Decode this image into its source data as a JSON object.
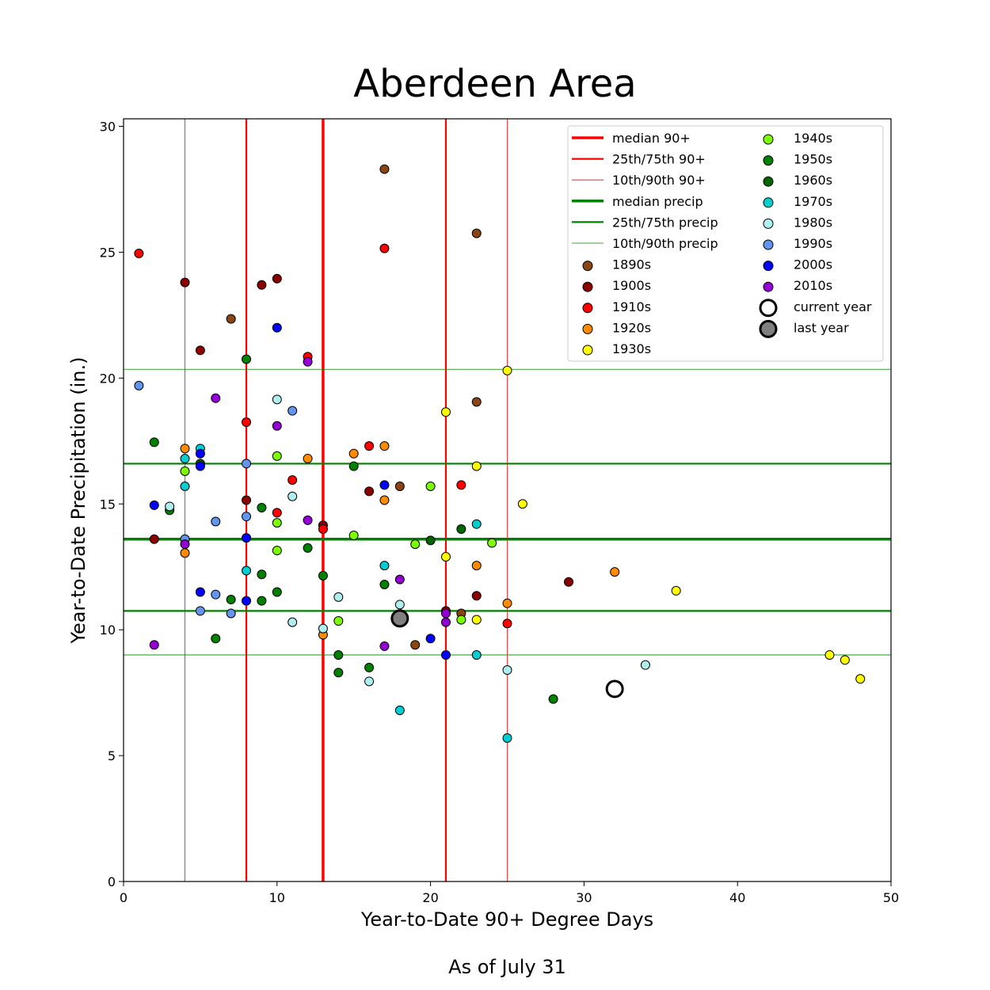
{
  "chart_data": {
    "type": "scatter",
    "title": "Aberdeen Area",
    "xlabel": "Year-to-Date 90+ Degree Days",
    "ylabel": "Year-to-Date Precipitation (in.)",
    "footer": "As of July 31",
    "xlim": [
      0,
      50
    ],
    "ylim": [
      0,
      30.3
    ],
    "xticks": [
      0,
      10,
      20,
      30,
      40,
      50
    ],
    "yticks": [
      0,
      5,
      10,
      15,
      20,
      25,
      30
    ],
    "grid": false,
    "legend_position": "top-right",
    "reference_lines": {
      "vertical": [
        {
          "name": "median 90+",
          "value": 13,
          "color": "#ff0000",
          "weight": "thick"
        },
        {
          "name": "25th/75th 90+",
          "value": 8,
          "color": "#ff0000",
          "weight": "medium"
        },
        {
          "name": "25th/75th 90+",
          "value": 21,
          "color": "#ff0000",
          "weight": "medium"
        },
        {
          "name": "10th/90th 90+",
          "value": 4,
          "color": "#ff0000",
          "weight": "thin"
        },
        {
          "name": "10th/90th 90+",
          "value": 25,
          "color": "#ff0000",
          "weight": "thin"
        }
      ],
      "horizontal": [
        {
          "name": "median precip",
          "value": 13.6,
          "color": "#008000",
          "weight": "thick"
        },
        {
          "name": "25th/75th precip",
          "value": 10.75,
          "color": "#008000",
          "weight": "medium"
        },
        {
          "name": "25th/75th precip",
          "value": 16.6,
          "color": "#008000",
          "weight": "medium"
        },
        {
          "name": "10th/90th precip",
          "value": 9.0,
          "color": "#008000",
          "weight": "thin"
        },
        {
          "name": "10th/90th precip",
          "value": 20.35,
          "color": "#008000",
          "weight": "thin"
        }
      ]
    },
    "legend": {
      "lines": [
        {
          "label": "median 90+",
          "color": "#ff0000",
          "weight": "thick"
        },
        {
          "label": "25th/75th 90+",
          "color": "#ff0000",
          "weight": "medium"
        },
        {
          "label": "10th/90th 90+",
          "color": "#ff0000",
          "weight": "thin"
        },
        {
          "label": "median precip",
          "color": "#008000",
          "weight": "thick"
        },
        {
          "label": "25th/75th precip",
          "color": "#008000",
          "weight": "medium"
        },
        {
          "label": "10th/90th precip",
          "color": "#008000",
          "weight": "thin"
        }
      ],
      "markers": [
        {
          "label": "1890s",
          "color": "#8b4513"
        },
        {
          "label": "1900s",
          "color": "#8b0000"
        },
        {
          "label": "1910s",
          "color": "#ff0000"
        },
        {
          "label": "1920s",
          "color": "#ff8c00"
        },
        {
          "label": "1930s",
          "color": "#ffff00"
        },
        {
          "label": "1940s",
          "color": "#7cfc00"
        },
        {
          "label": "1950s",
          "color": "#008000"
        },
        {
          "label": "1960s",
          "color": "#006400"
        },
        {
          "label": "1970s",
          "color": "#00ced1"
        },
        {
          "label": "1980s",
          "color": "#afeeee"
        },
        {
          "label": "1990s",
          "color": "#6495ed"
        },
        {
          "label": "2000s",
          "color": "#0000ff"
        },
        {
          "label": "2010s",
          "color": "#9400d3"
        },
        {
          "label": "current year",
          "color": "#ffffff",
          "special": "current"
        },
        {
          "label": "last year",
          "color": "#808080",
          "special": "last"
        }
      ]
    },
    "series": [
      {
        "name": "1890s",
        "color": "#8b4513",
        "points": [
          [
            17,
            28.3
          ],
          [
            23,
            25.75
          ],
          [
            7,
            22.35
          ],
          [
            23,
            19.05
          ],
          [
            18,
            15.7
          ],
          [
            22,
            10.65
          ],
          [
            19,
            9.4
          ]
        ]
      },
      {
        "name": "1900s",
        "color": "#8b0000",
        "points": [
          [
            4,
            23.8
          ],
          [
            9,
            23.7
          ],
          [
            10,
            23.95
          ],
          [
            5,
            21.1
          ],
          [
            8,
            15.15
          ],
          [
            16,
            15.5
          ],
          [
            2,
            13.6
          ],
          [
            13,
            14.15
          ],
          [
            23,
            11.35
          ],
          [
            29,
            11.9
          ],
          [
            21,
            10.75
          ]
        ]
      },
      {
        "name": "1910s",
        "color": "#ff0000",
        "points": [
          [
            1,
            24.95
          ],
          [
            17,
            25.15
          ],
          [
            12,
            20.85
          ],
          [
            8,
            18.25
          ],
          [
            16,
            17.3
          ],
          [
            11,
            15.95
          ],
          [
            22,
            15.75
          ],
          [
            10,
            14.65
          ],
          [
            13,
            14.0
          ],
          [
            25,
            10.25
          ]
        ]
      },
      {
        "name": "1920s",
        "color": "#ff8c00",
        "points": [
          [
            4,
            17.2
          ],
          [
            12,
            16.8
          ],
          [
            15,
            17.0
          ],
          [
            17,
            17.3
          ],
          [
            17,
            15.15
          ],
          [
            4,
            13.05
          ],
          [
            23,
            12.55
          ],
          [
            32,
            12.3
          ],
          [
            25,
            11.05
          ],
          [
            13,
            9.8
          ]
        ]
      },
      {
        "name": "1930s",
        "color": "#ffff00",
        "points": [
          [
            25,
            20.3
          ],
          [
            21,
            18.65
          ],
          [
            23,
            16.5
          ],
          [
            26,
            15.0
          ],
          [
            21,
            12.9
          ],
          [
            36,
            11.55
          ],
          [
            23,
            10.4
          ],
          [
            46,
            9.0
          ],
          [
            47,
            8.8
          ],
          [
            48,
            8.05
          ]
        ]
      },
      {
        "name": "1940s",
        "color": "#7cfc00",
        "points": [
          [
            4,
            16.3
          ],
          [
            10,
            16.9
          ],
          [
            10,
            14.25
          ],
          [
            15,
            13.75
          ],
          [
            10,
            13.15
          ],
          [
            20,
            15.7
          ],
          [
            19,
            13.4
          ],
          [
            24,
            13.45
          ],
          [
            14,
            10.35
          ],
          [
            22,
            10.4
          ]
        ]
      },
      {
        "name": "1950s",
        "color": "#008000",
        "points": [
          [
            8,
            20.75
          ],
          [
            2,
            17.45
          ],
          [
            3,
            14.75
          ],
          [
            9,
            14.85
          ],
          [
            15,
            16.5
          ],
          [
            12,
            13.25
          ],
          [
            9,
            12.2
          ],
          [
            13,
            12.15
          ],
          [
            17,
            11.8
          ],
          [
            10,
            11.5
          ],
          [
            7,
            11.2
          ],
          [
            9,
            11.15
          ],
          [
            6,
            9.65
          ],
          [
            14,
            9.0
          ],
          [
            14,
            8.3
          ],
          [
            16,
            8.5
          ],
          [
            28,
            7.25
          ]
        ]
      },
      {
        "name": "1960s",
        "color": "#006400",
        "points": [
          [
            5,
            16.6
          ],
          [
            20,
            13.55
          ],
          [
            22,
            14.0
          ]
        ]
      },
      {
        "name": "1970s",
        "color": "#00ced1",
        "points": [
          [
            5,
            17.2
          ],
          [
            4,
            16.8
          ],
          [
            4,
            15.7
          ],
          [
            8,
            12.35
          ],
          [
            17,
            12.55
          ],
          [
            23,
            14.2
          ],
          [
            23,
            9.0
          ],
          [
            18,
            6.8
          ],
          [
            25,
            5.7
          ]
        ]
      },
      {
        "name": "1980s",
        "color": "#afeeee",
        "points": [
          [
            10,
            19.15
          ],
          [
            3,
            14.9
          ],
          [
            11,
            15.3
          ],
          [
            14,
            11.3
          ],
          [
            18,
            11.0
          ],
          [
            11,
            10.3
          ],
          [
            13,
            10.05
          ],
          [
            16,
            7.95
          ],
          [
            25,
            8.4
          ],
          [
            34,
            8.6
          ]
        ]
      },
      {
        "name": "1990s",
        "color": "#6495ed",
        "points": [
          [
            1,
            19.7
          ],
          [
            11,
            18.7
          ],
          [
            8,
            16.6
          ],
          [
            6,
            14.3
          ],
          [
            8,
            14.5
          ],
          [
            4,
            13.6
          ],
          [
            6,
            11.4
          ],
          [
            5,
            10.75
          ],
          [
            7,
            10.65
          ]
        ]
      },
      {
        "name": "2000s",
        "color": "#0000ff",
        "points": [
          [
            10,
            22.0
          ],
          [
            5,
            17.0
          ],
          [
            5,
            16.5
          ],
          [
            2,
            14.95
          ],
          [
            17,
            15.75
          ],
          [
            8,
            13.65
          ],
          [
            5,
            11.5
          ],
          [
            8,
            11.15
          ],
          [
            20,
            9.65
          ],
          [
            21,
            9.0
          ]
        ]
      },
      {
        "name": "2010s",
        "color": "#9400d3",
        "points": [
          [
            6,
            19.2
          ],
          [
            12,
            20.65
          ],
          [
            10,
            18.1
          ],
          [
            12,
            14.35
          ],
          [
            4,
            13.4
          ],
          [
            18,
            12.0
          ],
          [
            2,
            9.4
          ],
          [
            17,
            9.35
          ],
          [
            21,
            10.65
          ],
          [
            21,
            10.3
          ]
        ]
      }
    ],
    "current_year": {
      "label": "current year",
      "x": 32,
      "y": 7.65
    },
    "last_year": {
      "label": "last year",
      "x": 18,
      "y": 10.45
    }
  }
}
